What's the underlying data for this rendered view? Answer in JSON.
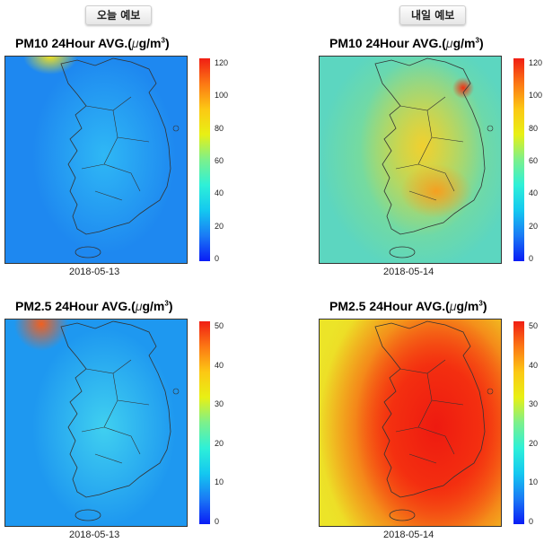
{
  "tabs": {
    "today": "오늘 예보",
    "tomorrow": "내일 예보"
  },
  "panels": [
    {
      "title_prefix": "PM10 24Hour AVG.(",
      "unit_mu": "μ",
      "unit_rest": "g/m",
      "unit_exp": "3",
      "unit_close": ")",
      "date": "2018-05-13",
      "scale_max": 120,
      "ticks": [
        "120",
        "100",
        "80",
        "60",
        "40",
        "20",
        "0"
      ]
    },
    {
      "title_prefix": "PM10 24Hour AVG.(",
      "unit_mu": "μ",
      "unit_rest": "g/m",
      "unit_exp": "3",
      "unit_close": ")",
      "date": "2018-05-14",
      "scale_max": 120,
      "ticks": [
        "120",
        "100",
        "80",
        "60",
        "40",
        "20",
        "0"
      ]
    },
    {
      "title_prefix": "PM2.5 24Hour AVG.(",
      "unit_mu": "μ",
      "unit_rest": "g/m",
      "unit_exp": "3",
      "unit_close": ")",
      "date": "2018-05-13",
      "scale_max": 50,
      "ticks": [
        "50",
        "40",
        "30",
        "20",
        "10",
        "0"
      ]
    },
    {
      "title_prefix": "PM2.5 24Hour AVG.(",
      "unit_mu": "μ",
      "unit_rest": "g/m",
      "unit_exp": "3",
      "unit_close": ")",
      "date": "2018-05-14",
      "scale_max": 50,
      "ticks": [
        "50",
        "40",
        "30",
        "20",
        "10",
        "0"
      ]
    }
  ],
  "colors": {
    "colorbar": [
      "#0a1cf5",
      "#1a7af5",
      "#14c8f0",
      "#2ef0d8",
      "#7cf08c",
      "#e8f014",
      "#fcc814",
      "#fc7814",
      "#f01e14"
    ]
  }
}
